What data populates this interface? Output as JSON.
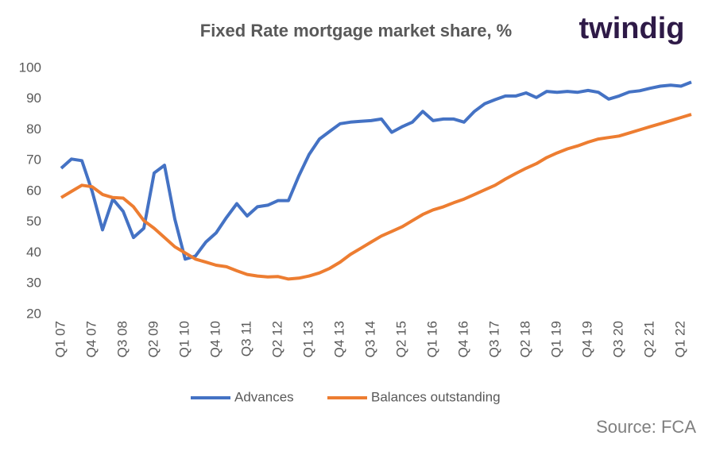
{
  "chart_data": {
    "type": "line",
    "title": "Fixed Rate mortgage market share, %",
    "logo": "twindig",
    "source": "Source: FCA",
    "categories": [
      "Q1 07",
      null,
      null,
      "Q4 07",
      null,
      null,
      "Q3 08",
      null,
      null,
      "Q2 09",
      null,
      null,
      "Q1 10",
      null,
      null,
      "Q4 10",
      null,
      null,
      "Q3 11",
      null,
      null,
      "Q2 12",
      null,
      null,
      "Q1 13",
      null,
      null,
      "Q4 13",
      null,
      null,
      "Q3 14",
      null,
      null,
      "Q2 15",
      null,
      null,
      "Q1 16",
      null,
      null,
      "Q4 16",
      null,
      null,
      "Q3 17",
      null,
      null,
      "Q2 18",
      null,
      null,
      "Q1 19",
      null,
      null,
      "Q4 19",
      null,
      null,
      "Q3 20",
      null,
      null,
      "Q2 21",
      null,
      null,
      "Q1 22",
      null
    ],
    "series": [
      {
        "name": "Advances",
        "color": "#4472c4",
        "values": [
          67.5,
          70.5,
          70,
          60,
          47.5,
          57.5,
          53.5,
          45,
          48,
          66,
          68.5,
          51,
          38,
          39,
          43.5,
          46.5,
          51.5,
          56,
          52,
          55,
          55.5,
          57,
          57,
          65,
          72,
          77,
          79.5,
          82,
          82.5,
          82.8,
          83,
          83.5,
          79.2,
          81,
          82.5,
          86,
          83,
          83.5,
          83.5,
          82.5,
          86,
          88.5,
          89.8,
          91,
          91,
          92,
          90.5,
          92.5,
          92.2,
          92.5,
          92.2,
          92.8,
          92.2,
          90,
          91,
          92.3,
          92.7,
          93.5,
          94.2,
          94.5,
          94.2,
          95.5
        ]
      },
      {
        "name": "Balances outstanding",
        "color": "#ed7d31",
        "values": [
          58,
          60,
          62,
          61.5,
          59,
          58,
          57.8,
          55,
          50.5,
          48,
          45,
          42,
          40,
          38,
          37,
          36,
          35.5,
          34.2,
          33,
          32.5,
          32.2,
          32.3,
          31.5,
          31.8,
          32.5,
          33.5,
          35,
          37,
          39.5,
          41.5,
          43.5,
          45.5,
          47,
          48.5,
          50.5,
          52.5,
          54,
          55,
          56.3,
          57.5,
          59,
          60.5,
          62,
          64,
          65.8,
          67.5,
          69,
          71,
          72.5,
          73.8,
          74.8,
          76,
          77,
          77.5,
          78,
          79,
          80,
          81,
          82,
          83,
          84,
          85
        ]
      }
    ],
    "ylim": [
      20,
      100
    ],
    "yticks": [
      20,
      30,
      40,
      50,
      60,
      70,
      80,
      90,
      100
    ],
    "grid": false,
    "legend": "bottom"
  }
}
